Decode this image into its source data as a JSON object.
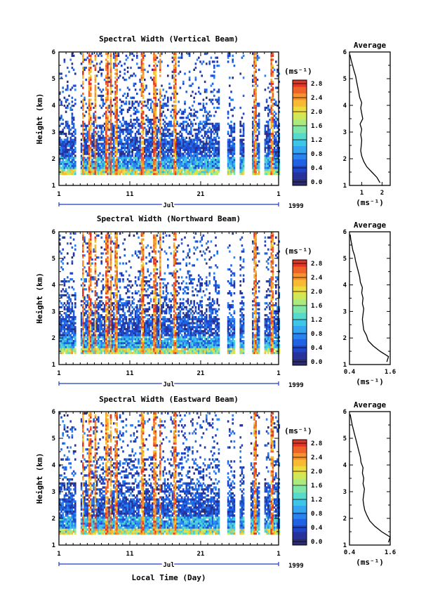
{
  "colors": {
    "scale": [
      "#2c2d6e",
      "#27339a",
      "#1f46c9",
      "#1f62e4",
      "#2a83f0",
      "#33a6ef",
      "#3fc6e6",
      "#57d9cb",
      "#7fe6a9",
      "#aaeb81",
      "#cfe85a",
      "#eedc3f",
      "#f7bb33",
      "#f7922c",
      "#ee6328",
      "#e03527"
    ]
  },
  "chart_data": [
    {
      "type": "heatmap",
      "title": "Spectral Width (Vertical Beam)",
      "ylabel": "Height (km)",
      "ylim": [
        1,
        6
      ],
      "yticks": [
        "1",
        "2",
        "3",
        "4",
        "5",
        "6"
      ],
      "xlim": [
        1,
        32
      ],
      "xticks": [
        "1",
        "11",
        "21",
        "1"
      ],
      "month_label": "Jul",
      "year_label": "1999",
      "xlabel": "",
      "colorbar": {
        "unit": "(ms⁻¹)",
        "ticks": [
          "0.0",
          "0.4",
          "0.8",
          "1.2",
          "1.6",
          "2.0",
          "2.4",
          "2.8"
        ],
        "range": [
          0,
          3.0
        ]
      },
      "average": {
        "title": "Average",
        "xlabel": "(ms⁻¹)",
        "xticks": [
          "1",
          "2"
        ],
        "xlim": [
          0.4,
          2.4
        ],
        "heights": [
          1.1,
          1.3,
          1.5,
          1.7,
          1.9,
          2.1,
          2.3,
          2.5,
          2.7,
          2.9,
          3.1,
          3.3,
          3.5,
          3.7,
          3.9,
          4.1,
          4.3,
          4.5,
          4.7,
          4.9,
          5.1,
          5.3,
          5.5,
          5.7,
          5.9
        ],
        "values": [
          1.9,
          1.75,
          1.5,
          1.25,
          1.1,
          1.0,
          0.95,
          0.98,
          1.0,
          0.95,
          1.0,
          0.92,
          1.05,
          1.0,
          0.95,
          1.0,
          0.9,
          0.85,
          0.8,
          0.75,
          0.7,
          0.62,
          0.55,
          0.48,
          0.42
        ]
      }
    },
    {
      "type": "heatmap",
      "title": "Spectral Width (Northward Beam)",
      "ylabel": "Height (km)",
      "ylim": [
        1,
        6
      ],
      "yticks": [
        "1",
        "2",
        "3",
        "4",
        "5",
        "6"
      ],
      "xlim": [
        1,
        32
      ],
      "xticks": [
        "1",
        "11",
        "21",
        "1"
      ],
      "month_label": "Jul",
      "year_label": "1999",
      "xlabel": "",
      "colorbar": {
        "unit": "(ms⁻¹)",
        "ticks": [
          "0.0",
          "0.4",
          "0.8",
          "1.2",
          "1.6",
          "2.0",
          "2.4",
          "2.8"
        ],
        "range": [
          0,
          3.0
        ]
      },
      "average": {
        "title": "Average",
        "xlabel": "(ms⁻¹)",
        "xticks": [
          "0.4",
          "1.6"
        ],
        "xlim": [
          0.4,
          1.6
        ],
        "heights": [
          1.1,
          1.3,
          1.5,
          1.7,
          1.9,
          2.1,
          2.3,
          2.5,
          2.7,
          2.9,
          3.1,
          3.3,
          3.5,
          3.7,
          3.9,
          4.1,
          4.3,
          4.5,
          4.7,
          4.9,
          5.1,
          5.3,
          5.5,
          5.7,
          5.9
        ],
        "values": [
          1.5,
          1.55,
          1.3,
          1.1,
          0.95,
          0.9,
          0.82,
          0.8,
          0.78,
          0.8,
          0.82,
          0.78,
          0.8,
          0.76,
          0.78,
          0.72,
          0.7,
          0.66,
          0.62,
          0.58,
          0.55,
          0.5,
          0.47,
          0.44,
          0.42
        ]
      }
    },
    {
      "type": "heatmap",
      "title": "Spectral Width (Eastward Beam)",
      "ylabel": "Height (km)",
      "ylim": [
        1,
        6
      ],
      "yticks": [
        "1",
        "2",
        "3",
        "4",
        "5",
        "6"
      ],
      "xlim": [
        1,
        32
      ],
      "xticks": [
        "1",
        "11",
        "21",
        "1"
      ],
      "month_label": "Jul",
      "year_label": "1999",
      "xlabel": "Local Time (Day)",
      "colorbar": {
        "unit": "(ms⁻¹)",
        "ticks": [
          "0.0",
          "0.4",
          "0.8",
          "1.2",
          "1.6",
          "2.0",
          "2.4",
          "2.8"
        ],
        "range": [
          0,
          3.0
        ]
      },
      "average": {
        "title": "Average",
        "xlabel": "(ms⁻¹)",
        "xticks": [
          "0.4",
          "1.6"
        ],
        "xlim": [
          0.4,
          1.6
        ],
        "heights": [
          1.1,
          1.3,
          1.5,
          1.7,
          1.9,
          2.1,
          2.3,
          2.5,
          2.7,
          2.9,
          3.1,
          3.3,
          3.5,
          3.7,
          3.9,
          4.1,
          4.3,
          4.5,
          4.7,
          4.9,
          5.1,
          5.3,
          5.5,
          5.7,
          5.9
        ],
        "values": [
          1.55,
          1.6,
          1.35,
          1.15,
          1.0,
          0.92,
          0.85,
          0.82,
          0.8,
          0.82,
          0.84,
          0.8,
          0.82,
          0.78,
          0.8,
          0.74,
          0.72,
          0.68,
          0.64,
          0.6,
          0.56,
          0.52,
          0.48,
          0.45,
          0.42
        ]
      }
    }
  ]
}
